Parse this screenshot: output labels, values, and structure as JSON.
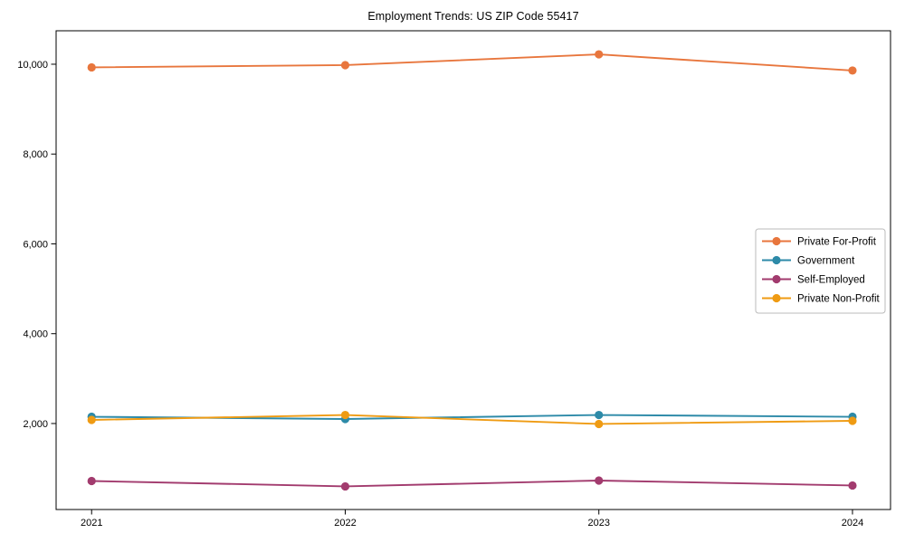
{
  "chart_data": {
    "type": "line",
    "title": "Employment Trends: US ZIP Code 55417",
    "x": [
      2021,
      2022,
      2023,
      2024
    ],
    "x_tick_labels": [
      "2021",
      "2022",
      "2023",
      "2024"
    ],
    "series": [
      {
        "name": "Private For-Profit",
        "color": "#e8763d",
        "values": [
          9930,
          9980,
          10220,
          9860
        ]
      },
      {
        "name": "Government",
        "color": "#2d8aa8",
        "values": [
          2150,
          2100,
          2190,
          2150
        ]
      },
      {
        "name": "Self-Employed",
        "color": "#a23b6e",
        "values": [
          720,
          600,
          730,
          620
        ]
      },
      {
        "name": "Private Non-Profit",
        "color": "#ef9b13",
        "values": [
          2080,
          2190,
          1990,
          2060
        ]
      }
    ],
    "xlabel": "",
    "ylabel": "",
    "xlim": [
      2020.86,
      2024.15
    ],
    "ylim": [
      85,
      10745
    ],
    "yticks": [
      2000,
      4000,
      6000,
      8000,
      10000
    ],
    "ytick_labels": [
      "2,000",
      "4,000",
      "6,000",
      "8,000",
      "10,000"
    ],
    "grid": false,
    "legend_position": "center-right",
    "marker": "circle",
    "axis_color": "#000000",
    "legend_border_color": "#bbbbbb",
    "background_color": "#ffffff"
  }
}
